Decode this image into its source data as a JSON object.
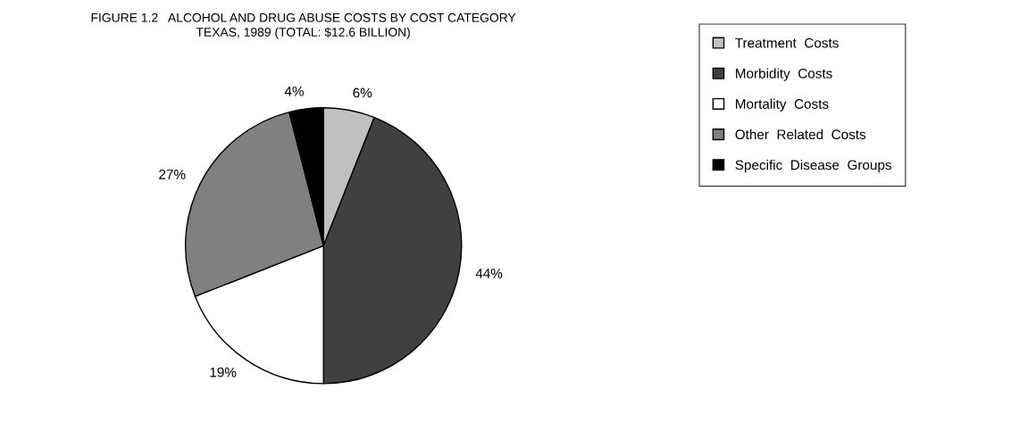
{
  "chart_data": {
    "type": "pie",
    "title": "FIGURE 1.2   ALCOHOL AND DRUG ABUSE COSTS BY COST CATEGORY\nTEXAS, 1989 (TOTAL: $12.6 BILLION)",
    "categories": [
      "Treatment  Costs",
      "Morbidity  Costs",
      "Mortality  Costs",
      "Other  Related  Costs",
      "Specific  Disease  Groups"
    ],
    "values": [
      6,
      44,
      19,
      27,
      4
    ],
    "colors": [
      "#c0c0c0",
      "#404040",
      "#ffffff",
      "#808080",
      "#000000"
    ],
    "value_labels": [
      "6%",
      "44%",
      "19%",
      "27%",
      "4%"
    ],
    "legend": "right"
  }
}
